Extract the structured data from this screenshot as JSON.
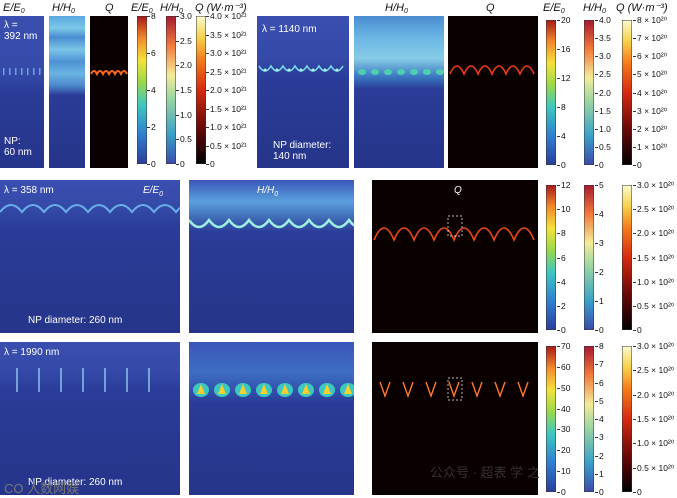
{
  "panels": {
    "a": {
      "h1": "E/E",
      "h1sub": "0",
      "h2": "H/H",
      "h2sub": "0",
      "h3": "Q",
      "h4": "E/E",
      "h4sub": "0",
      "h5": "H/H",
      "h5sub": "0",
      "h6": "Q (W·m⁻³)",
      "lambda": "λ =\n392 nm",
      "np": "NP:\n60 nm",
      "cbE": [
        "8",
        "6",
        "4",
        "2",
        "0"
      ],
      "cbH": [
        "3.0",
        "2.5",
        "2.0",
        "1.5",
        "1.0",
        "0.5",
        "0"
      ],
      "cbQ": [
        "4.0 × 10²¹",
        "3.5 × 10²¹",
        "3.0 × 10²¹",
        "2.5 × 10²¹",
        "2.0 × 10²¹",
        "1.5 × 10²¹",
        "1.0 × 10²¹",
        "0.5 × 10²¹",
        "0"
      ]
    },
    "b": {
      "h1": "H/H",
      "h1sub": "0",
      "h2": "Q",
      "h3": "E/E",
      "h3sub": "0",
      "h4": "H/H",
      "h4sub": "0",
      "h5": "Q (W·m⁻³)",
      "lambda": "λ = 1140 nm",
      "np": "NP diameter:\n140 nm",
      "cbE": [
        "20",
        "16",
        "12",
        "8",
        "4",
        "0"
      ],
      "cbH": [
        "4.0",
        "3.5",
        "3.0",
        "2.5",
        "2.0",
        "1.5",
        "1.0",
        "0.5",
        "0"
      ],
      "cbQ": [
        "8 × 10²⁰",
        "7 × 10²⁰",
        "6 × 10²⁰",
        "5 × 10²⁰",
        "4 × 10²⁰",
        "3 × 10²⁰",
        "2 × 10²⁰",
        "1 × 10²⁰",
        "0"
      ]
    },
    "c": {
      "lambda": "λ = 358 nm",
      "e": "E/E",
      "esub": "0",
      "h": "H/H",
      "hsub": "0",
      "q": "Q",
      "np": "NP diameter: 260 nm",
      "cbE": [
        "12",
        "10",
        "8",
        "6",
        "4",
        "2",
        "0"
      ],
      "cbH": [
        "5",
        "4",
        "3",
        "2",
        "1",
        "0"
      ],
      "cbQ": [
        "3.0 × 10²⁰",
        "2.5 × 10²⁰",
        "2.0 × 10²⁰",
        "1.5 × 10²⁰",
        "1.0 × 10²⁰",
        "0.5 × 10²⁰",
        "0"
      ]
    },
    "d": {
      "lambda": "λ = 1990 nm",
      "np": "NP diameter: 260 nm",
      "cbE": [
        "70",
        "60",
        "50",
        "40",
        "30",
        "20",
        "10",
        "0"
      ],
      "cbH": [
        "8",
        "7",
        "6",
        "5",
        "4",
        "3",
        "2",
        "1",
        "0"
      ],
      "cbQ": [
        "3.0 × 10²⁰",
        "2.5 × 10²⁰",
        "2.0 × 10²⁰",
        "1.5 × 10²⁰",
        "1.0 × 10²⁰",
        "0.5 × 10²⁰",
        "0"
      ]
    }
  },
  "watermark": {
    "left": "CO 人数网娱",
    "right": "公众号 · 超表 学 之"
  },
  "colors": {
    "bg_blue": "#2a3a8f",
    "q_bg": "#1a0000",
    "hot": "#ff5020"
  }
}
